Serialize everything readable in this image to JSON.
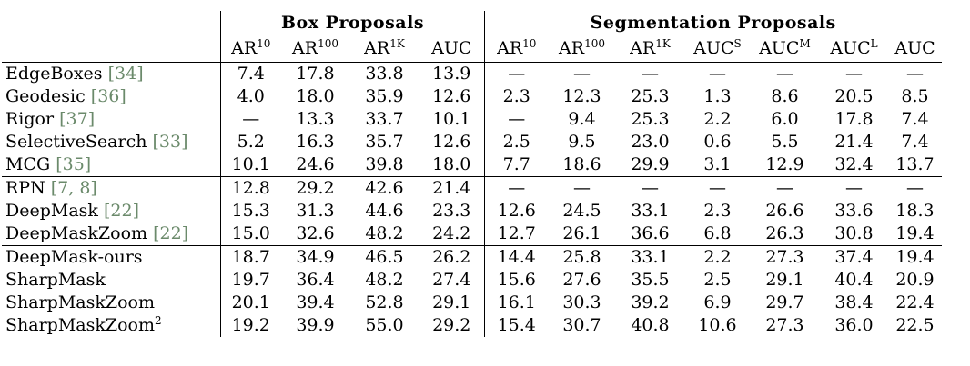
{
  "headers": {
    "box_group": "Box Proposals",
    "seg_group": "Segmentation Proposals",
    "box_cols": [
      {
        "base": "AR",
        "sup": "10"
      },
      {
        "base": "AR",
        "sup": "100"
      },
      {
        "base": "AR",
        "sup": "1K"
      },
      {
        "base": "AUC",
        "sup": ""
      }
    ],
    "seg_cols": [
      {
        "base": "AR",
        "sup": "10"
      },
      {
        "base": "AR",
        "sup": "100"
      },
      {
        "base": "AR",
        "sup": "1K"
      },
      {
        "base": "AUC",
        "sup": "S"
      },
      {
        "base": "AUC",
        "sup": "M"
      },
      {
        "base": "AUC",
        "sup": "L"
      },
      {
        "base": "AUC",
        "sup": ""
      }
    ]
  },
  "sections": [
    {
      "rows": [
        {
          "method": "EdgeBoxes",
          "cite": "[34]",
          "sup": "",
          "box": [
            "7.4",
            "17.8",
            "33.8",
            "13.9"
          ],
          "seg": [
            "—",
            "—",
            "—",
            "—",
            "—",
            "—",
            "—"
          ]
        },
        {
          "method": "Geodesic",
          "cite": "[36]",
          "sup": "",
          "box": [
            "4.0",
            "18.0",
            "35.9",
            "12.6"
          ],
          "seg": [
            "2.3",
            "12.3",
            "25.3",
            "1.3",
            "8.6",
            "20.5",
            "8.5"
          ]
        },
        {
          "method": "Rigor",
          "cite": "[37]",
          "sup": "",
          "box": [
            "—",
            "13.3",
            "33.7",
            "10.1"
          ],
          "seg": [
            "—",
            "9.4",
            "25.3",
            "2.2",
            "6.0",
            "17.8",
            "7.4"
          ]
        },
        {
          "method": "SelectiveSearch",
          "cite": "[33]",
          "sup": "",
          "box": [
            "5.2",
            "16.3",
            "35.7",
            "12.6"
          ],
          "seg": [
            "2.5",
            "9.5",
            "23.0",
            "0.6",
            "5.5",
            "21.4",
            "7.4"
          ]
        },
        {
          "method": "MCG",
          "cite": "[35]",
          "sup": "",
          "box": [
            "10.1",
            "24.6",
            "39.8",
            "18.0"
          ],
          "seg": [
            "7.7",
            "18.6",
            "29.9",
            "3.1",
            "12.9",
            "32.4",
            "13.7"
          ]
        }
      ]
    },
    {
      "rows": [
        {
          "method": "RPN",
          "cite": "[7, 8]",
          "sup": "",
          "box": [
            "12.8",
            "29.2",
            "42.6",
            "21.4"
          ],
          "seg": [
            "—",
            "—",
            "—",
            "—",
            "—",
            "—",
            "—"
          ]
        },
        {
          "method": "DeepMask",
          "cite": "[22]",
          "sup": "",
          "box": [
            "15.3",
            "31.3",
            "44.6",
            "23.3"
          ],
          "seg": [
            "12.6",
            "24.5",
            "33.1",
            "2.3",
            "26.6",
            "33.6",
            "18.3"
          ]
        },
        {
          "method": "DeepMaskZoom",
          "cite": "[22]",
          "sup": "",
          "box": [
            "15.0",
            "32.6",
            "48.2",
            "24.2"
          ],
          "seg": [
            "12.7",
            "26.1",
            "36.6",
            "6.8",
            "26.3",
            "30.8",
            "19.4"
          ]
        }
      ]
    },
    {
      "rows": [
        {
          "method": "DeepMask-ours",
          "cite": "",
          "sup": "",
          "box": [
            "18.7",
            "34.9",
            "46.5",
            "26.2"
          ],
          "seg": [
            "14.4",
            "25.8",
            "33.1",
            "2.2",
            "27.3",
            "37.4",
            "19.4"
          ]
        },
        {
          "method": "SharpMask",
          "cite": "",
          "sup": "",
          "box": [
            "19.7",
            "36.4",
            "48.2",
            "27.4"
          ],
          "seg": [
            "15.6",
            "27.6",
            "35.5",
            "2.5",
            "29.1",
            "40.4",
            "20.9"
          ]
        },
        {
          "method": "SharpMaskZoom",
          "cite": "",
          "sup": "",
          "box": [
            "20.1",
            "39.4",
            "52.8",
            "29.1"
          ],
          "seg": [
            "16.1",
            "30.3",
            "39.2",
            "6.9",
            "29.7",
            "38.4",
            "22.4"
          ]
        },
        {
          "method": "SharpMaskZoom",
          "cite": "",
          "sup": "2",
          "box": [
            "19.2",
            "39.9",
            "55.0",
            "29.2"
          ],
          "seg": [
            "15.4",
            "30.7",
            "40.8",
            "10.6",
            "27.3",
            "36.0",
            "22.5"
          ]
        }
      ]
    }
  ],
  "style": {
    "citation_color": "#6b8a6b"
  }
}
